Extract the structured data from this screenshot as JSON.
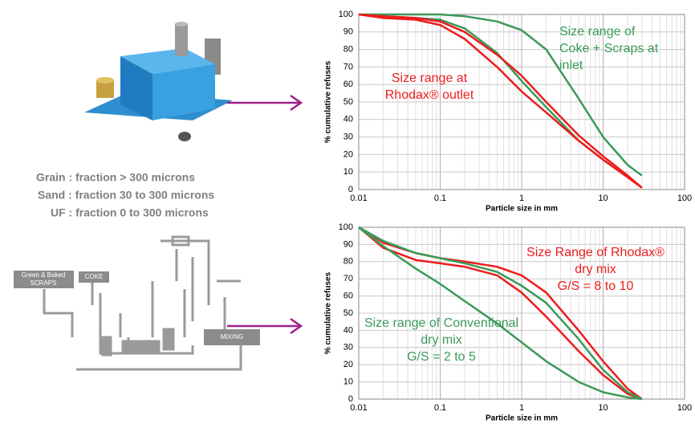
{
  "chart_data": [
    {
      "type": "line",
      "xscale": "log",
      "grid": true,
      "minor_grid": true,
      "xlabel": "Particle size in mm",
      "ylabel": "% cumulative refuses",
      "xlim": [
        0.01,
        100
      ],
      "xticks": [
        0.01,
        0.1,
        1,
        10,
        100
      ],
      "ylim": [
        0,
        100
      ],
      "yticks": [
        0,
        10,
        20,
        30,
        40,
        50,
        60,
        70,
        80,
        90,
        100
      ],
      "x": [
        0.01,
        0.02,
        0.05,
        0.1,
        0.2,
        0.5,
        1,
        2,
        5,
        10,
        20,
        30
      ],
      "series": [
        {
          "color": "#3a9a5a",
          "values": [
            100,
            100,
            100,
            100,
            99,
            96,
            91,
            80,
            52,
            30,
            14,
            8
          ]
        },
        {
          "color": "#3a9a5a",
          "values": [
            100,
            99,
            98,
            97,
            92,
            78,
            62,
            47,
            28,
            17,
            7,
            1
          ]
        },
        {
          "color": "#ee1c1c",
          "values": [
            100,
            98,
            97,
            94,
            86,
            70,
            56,
            44,
            28,
            17,
            7,
            1
          ]
        },
        {
          "color": "#ee1c1c",
          "values": [
            100,
            99,
            98,
            96,
            90,
            77,
            65,
            50,
            31,
            19,
            8,
            1
          ]
        }
      ],
      "annotations": [
        {
          "color": "#ee1c1c",
          "lines": [
            "Size range at",
            "Rhodax® outlet"
          ]
        },
        {
          "color": "#3a9a5a",
          "lines": [
            "Size range of",
            "Coke + Scraps at",
            "inlet"
          ]
        }
      ]
    },
    {
      "type": "line",
      "xscale": "log",
      "grid": true,
      "minor_grid": true,
      "xlabel": "Particle size in mm",
      "ylabel": "% cumulative refuses",
      "xlim": [
        0.01,
        100
      ],
      "xticks": [
        0.01,
        0.1,
        1,
        10,
        100
      ],
      "ylim": [
        0,
        100
      ],
      "yticks": [
        0,
        10,
        20,
        30,
        40,
        50,
        60,
        70,
        80,
        90,
        100
      ],
      "x": [
        0.01,
        0.02,
        0.05,
        0.1,
        0.2,
        0.5,
        1,
        2,
        5,
        10,
        20,
        30
      ],
      "series": [
        {
          "color": "#ee1c1c",
          "values": [
            100,
            91,
            85,
            82,
            80,
            77,
            72,
            62,
            40,
            22,
            6,
            0
          ]
        },
        {
          "color": "#ee1c1c",
          "values": [
            100,
            88,
            81,
            79,
            77,
            72,
            62,
            48,
            28,
            14,
            3,
            0
          ]
        },
        {
          "color": "#3a9a5a",
          "values": [
            100,
            92,
            85,
            82,
            79,
            74,
            66,
            56,
            35,
            17,
            4,
            0
          ]
        },
        {
          "color": "#3a9a5a",
          "values": [
            100,
            89,
            76,
            67,
            57,
            44,
            33,
            22,
            10,
            4,
            1,
            0
          ]
        }
      ],
      "annotations": [
        {
          "color": "#ee1c1c",
          "lines": [
            "Size Range of Rhodax®",
            "dry mix",
            "G/S = 8 to 10"
          ]
        },
        {
          "color": "#3a9a5a",
          "lines": [
            "Size range of Conventional",
            "dry mix",
            "G/S = 2 to 5"
          ]
        }
      ]
    }
  ],
  "slide": {
    "fractions": [
      "Grain :  fraction > 300 microns",
      "Sand :   fraction 30 to 300 microns",
      "UF :   fraction 0 to 300 microns"
    ],
    "diagram": {
      "scraps": [
        "Green & Baked",
        "SCRAPS"
      ],
      "coke": "COKE",
      "mixing": "MIXING"
    }
  }
}
